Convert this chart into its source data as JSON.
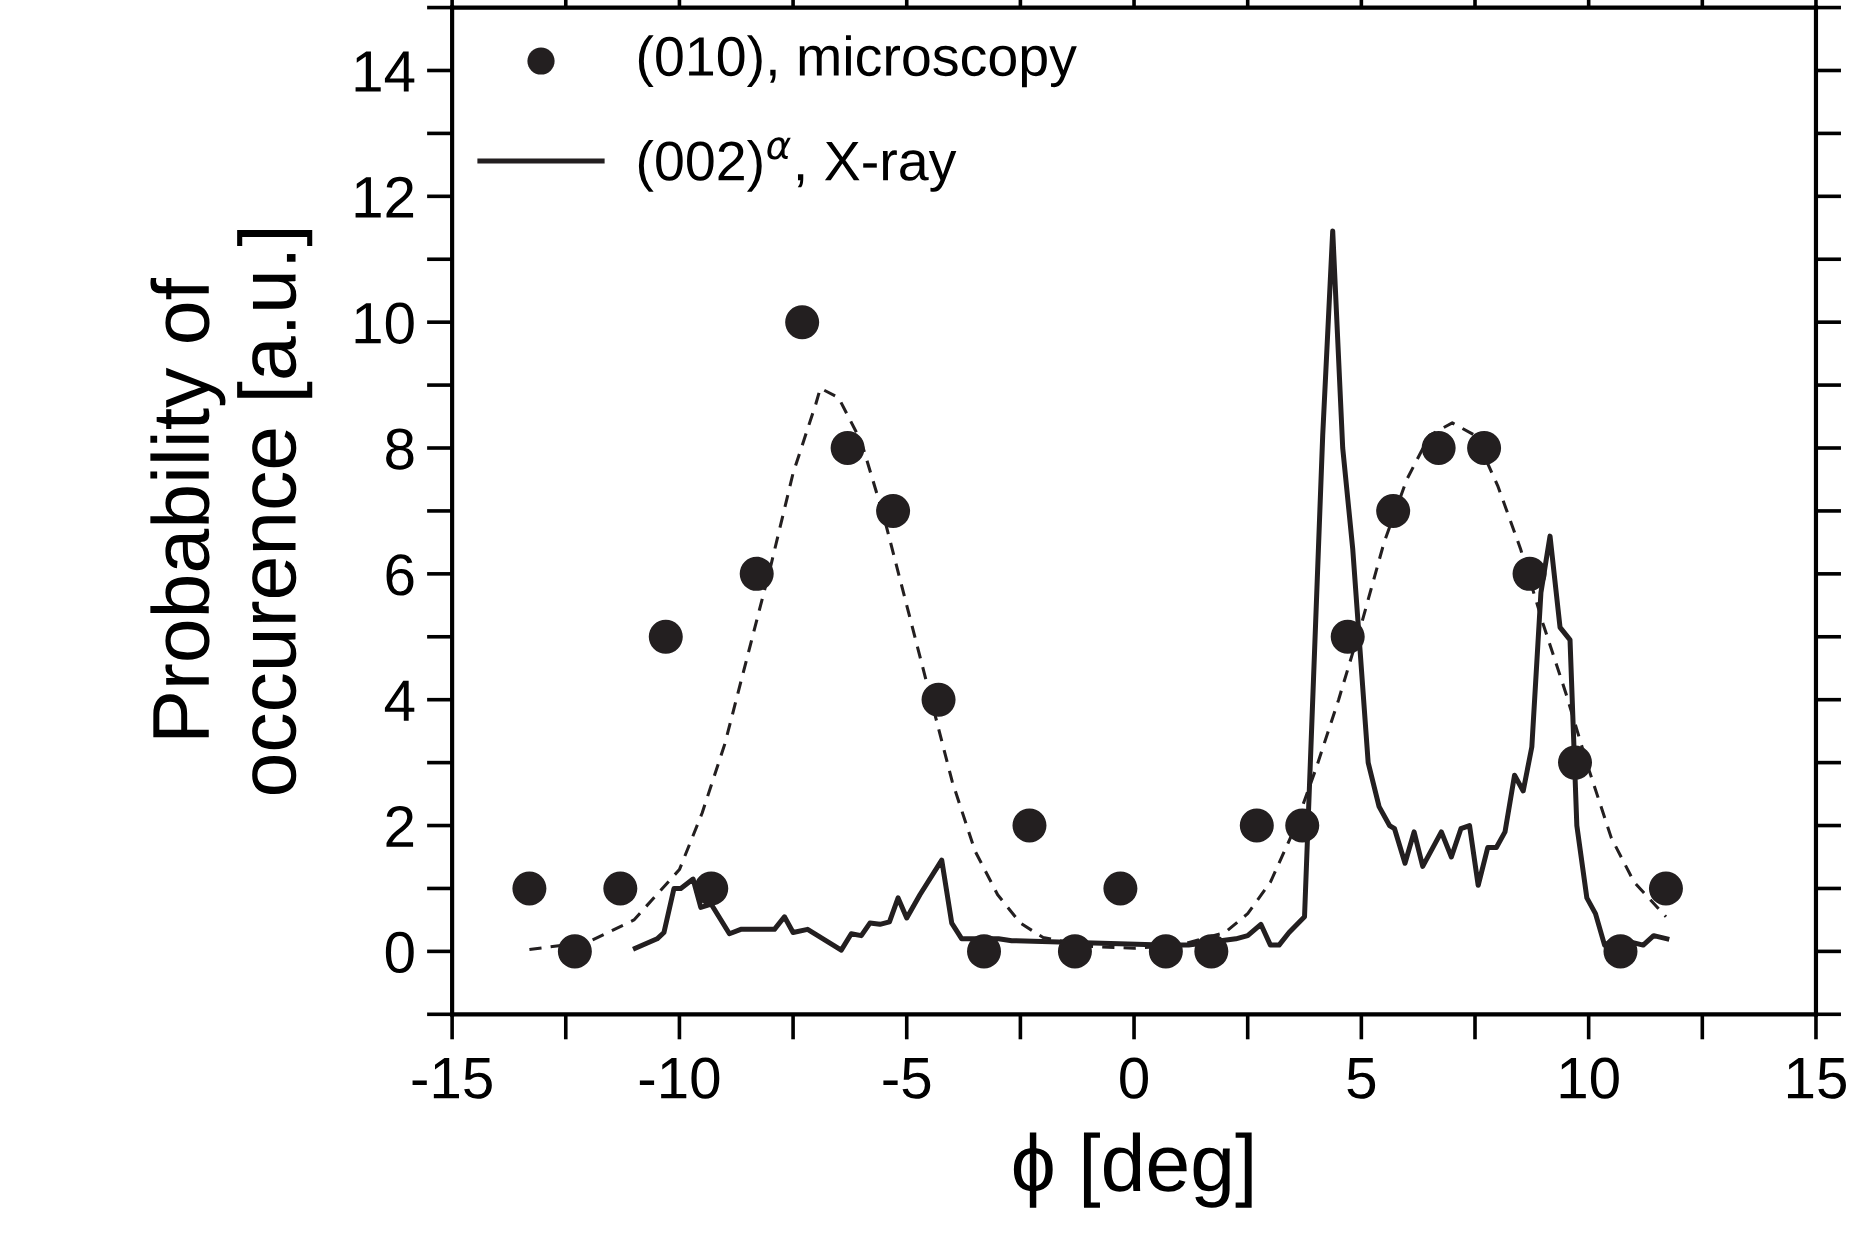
{
  "chart_data": {
    "type": "scatter",
    "xlabel": "ϕ [deg]",
    "ylabel": "Probability of\noccurence [a.u.]",
    "xlim": [
      -15,
      15
    ],
    "ylim": [
      -1,
      15
    ],
    "xticks": [
      -15,
      {
        "value": -12.5,
        "label": null
      },
      -10,
      {
        "value": -7.5,
        "label": null
      },
      -5,
      {
        "value": -2.5,
        "label": null
      },
      0,
      {
        "value": 2.5,
        "label": null
      },
      5,
      {
        "value": 7.5,
        "label": null
      },
      10,
      {
        "value": 12.5,
        "label": null
      },
      15
    ],
    "yticks": [
      {
        "value": -1,
        "label": null
      },
      0,
      {
        "value": 1,
        "label": null
      },
      2,
      {
        "value": 3,
        "label": null
      },
      4,
      {
        "value": 5,
        "label": null
      },
      6,
      {
        "value": 7,
        "label": null
      },
      8,
      {
        "value": 9,
        "label": null
      },
      10,
      {
        "value": 11,
        "label": null
      },
      12,
      {
        "value": 13,
        "label": null
      },
      14,
      {
        "value": 15,
        "label": null
      }
    ],
    "legend": "top left",
    "grid": false,
    "series": [
      {
        "name": "(010), microscopy",
        "marker": "circle",
        "color": "#231f20",
        "x": [
          -13.3,
          -12.3,
          -11.3,
          -10.3,
          -9.3,
          -8.3,
          -7.3,
          -6.3,
          -5.3,
          -4.3,
          -3.3,
          -2.3,
          -1.3,
          -0.3,
          0.7,
          1.7,
          2.7,
          3.7,
          4.7,
          5.7,
          6.7,
          7.7,
          8.7,
          9.7,
          10.7,
          11.7
        ],
        "values": [
          1,
          0,
          1,
          5,
          1,
          6,
          10,
          8,
          7,
          4,
          0,
          2,
          0,
          1,
          0,
          0,
          2,
          2,
          5,
          7,
          8,
          8,
          6,
          3,
          0,
          1
        ]
      },
      {
        "name": "(002)$^{α}$, X-ray",
        "type": "line",
        "line_style": "solid",
        "color": "#231f20",
        "x": [
          -10.97,
          -10.49,
          -10.34,
          -10.12,
          -9.97,
          -9.7,
          -9.53,
          -9.3,
          -8.9,
          -8.65,
          -7.91,
          -7.69,
          -7.5,
          -7.18,
          -6.44,
          -6.22,
          -6.0,
          -5.81,
          -5.59,
          -5.38,
          -5.19,
          -5.0,
          -4.71,
          -4.23,
          -4.01,
          -3.79,
          -2.98,
          -2.69,
          0.62,
          1.2,
          2.24,
          2.5,
          2.79,
          3.0,
          3.19,
          3.41,
          3.75,
          4.15,
          4.37,
          4.59,
          4.81,
          5.15,
          5.39,
          5.62,
          5.73,
          5.96,
          6.16,
          6.35,
          6.76,
          6.98,
          7.19,
          7.38,
          7.57,
          7.78,
          7.97,
          8.16,
          8.37,
          8.56,
          8.75,
          8.95,
          9.15,
          9.37,
          9.59,
          9.74,
          9.96,
          10.15,
          10.35,
          10.62,
          11.2,
          11.43,
          11.72
        ],
        "values": [
          0.05,
          0.2,
          0.3,
          1.0,
          1.0,
          1.15,
          0.7,
          0.75,
          0.28,
          0.35,
          0.35,
          0.55,
          0.3,
          0.35,
          0.02,
          0.28,
          0.25,
          0.45,
          0.43,
          0.47,
          0.85,
          0.53,
          0.9,
          1.45,
          0.45,
          0.2,
          0.2,
          0.17,
          0.1,
          0.1,
          0.2,
          0.25,
          0.43,
          0.1,
          0.1,
          0.3,
          0.55,
          8.2,
          11.45,
          8.0,
          6.4,
          3.0,
          2.3,
          2.0,
          1.95,
          1.4,
          1.9,
          1.35,
          1.9,
          1.5,
          1.95,
          2.0,
          1.05,
          1.65,
          1.65,
          1.9,
          2.8,
          2.55,
          3.25,
          5.7,
          6.6,
          5.15,
          4.95,
          2.0,
          0.85,
          0.6,
          0.1,
          0.2,
          0.1,
          0.25,
          0.2
        ]
      },
      {
        "type": "line",
        "line_style": "dashed",
        "color": "#231f20",
        "x": [
          -13.3,
          -12,
          -11,
          -10,
          -9.5,
          -9,
          -8.5,
          -8,
          -7.5,
          -7,
          -6.9,
          -6.5,
          -6,
          -5.5,
          -5,
          -4.5,
          -4,
          -3.5,
          -3,
          -2.5,
          -2,
          -1,
          0,
          1,
          2,
          2.5,
          3,
          3.5,
          4,
          4.5,
          5,
          5.5,
          6,
          6.5,
          7,
          7.5,
          8,
          8.5,
          9,
          9.5,
          10,
          10.5,
          11,
          11.7
        ],
        "values": [
          0.03,
          0.15,
          0.5,
          1.3,
          2.2,
          3.3,
          4.7,
          6.1,
          7.6,
          8.7,
          8.95,
          8.8,
          8.1,
          6.9,
          5.5,
          4.1,
          2.7,
          1.6,
          0.9,
          0.45,
          0.22,
          0.08,
          0.05,
          0.1,
          0.3,
          0.6,
          1.1,
          1.9,
          2.9,
          4.0,
          5.2,
          6.5,
          7.5,
          8.2,
          8.4,
          8.2,
          7.4,
          6.4,
          5.2,
          4.1,
          2.9,
          1.8,
          1.1,
          0.55
        ]
      }
    ]
  }
}
